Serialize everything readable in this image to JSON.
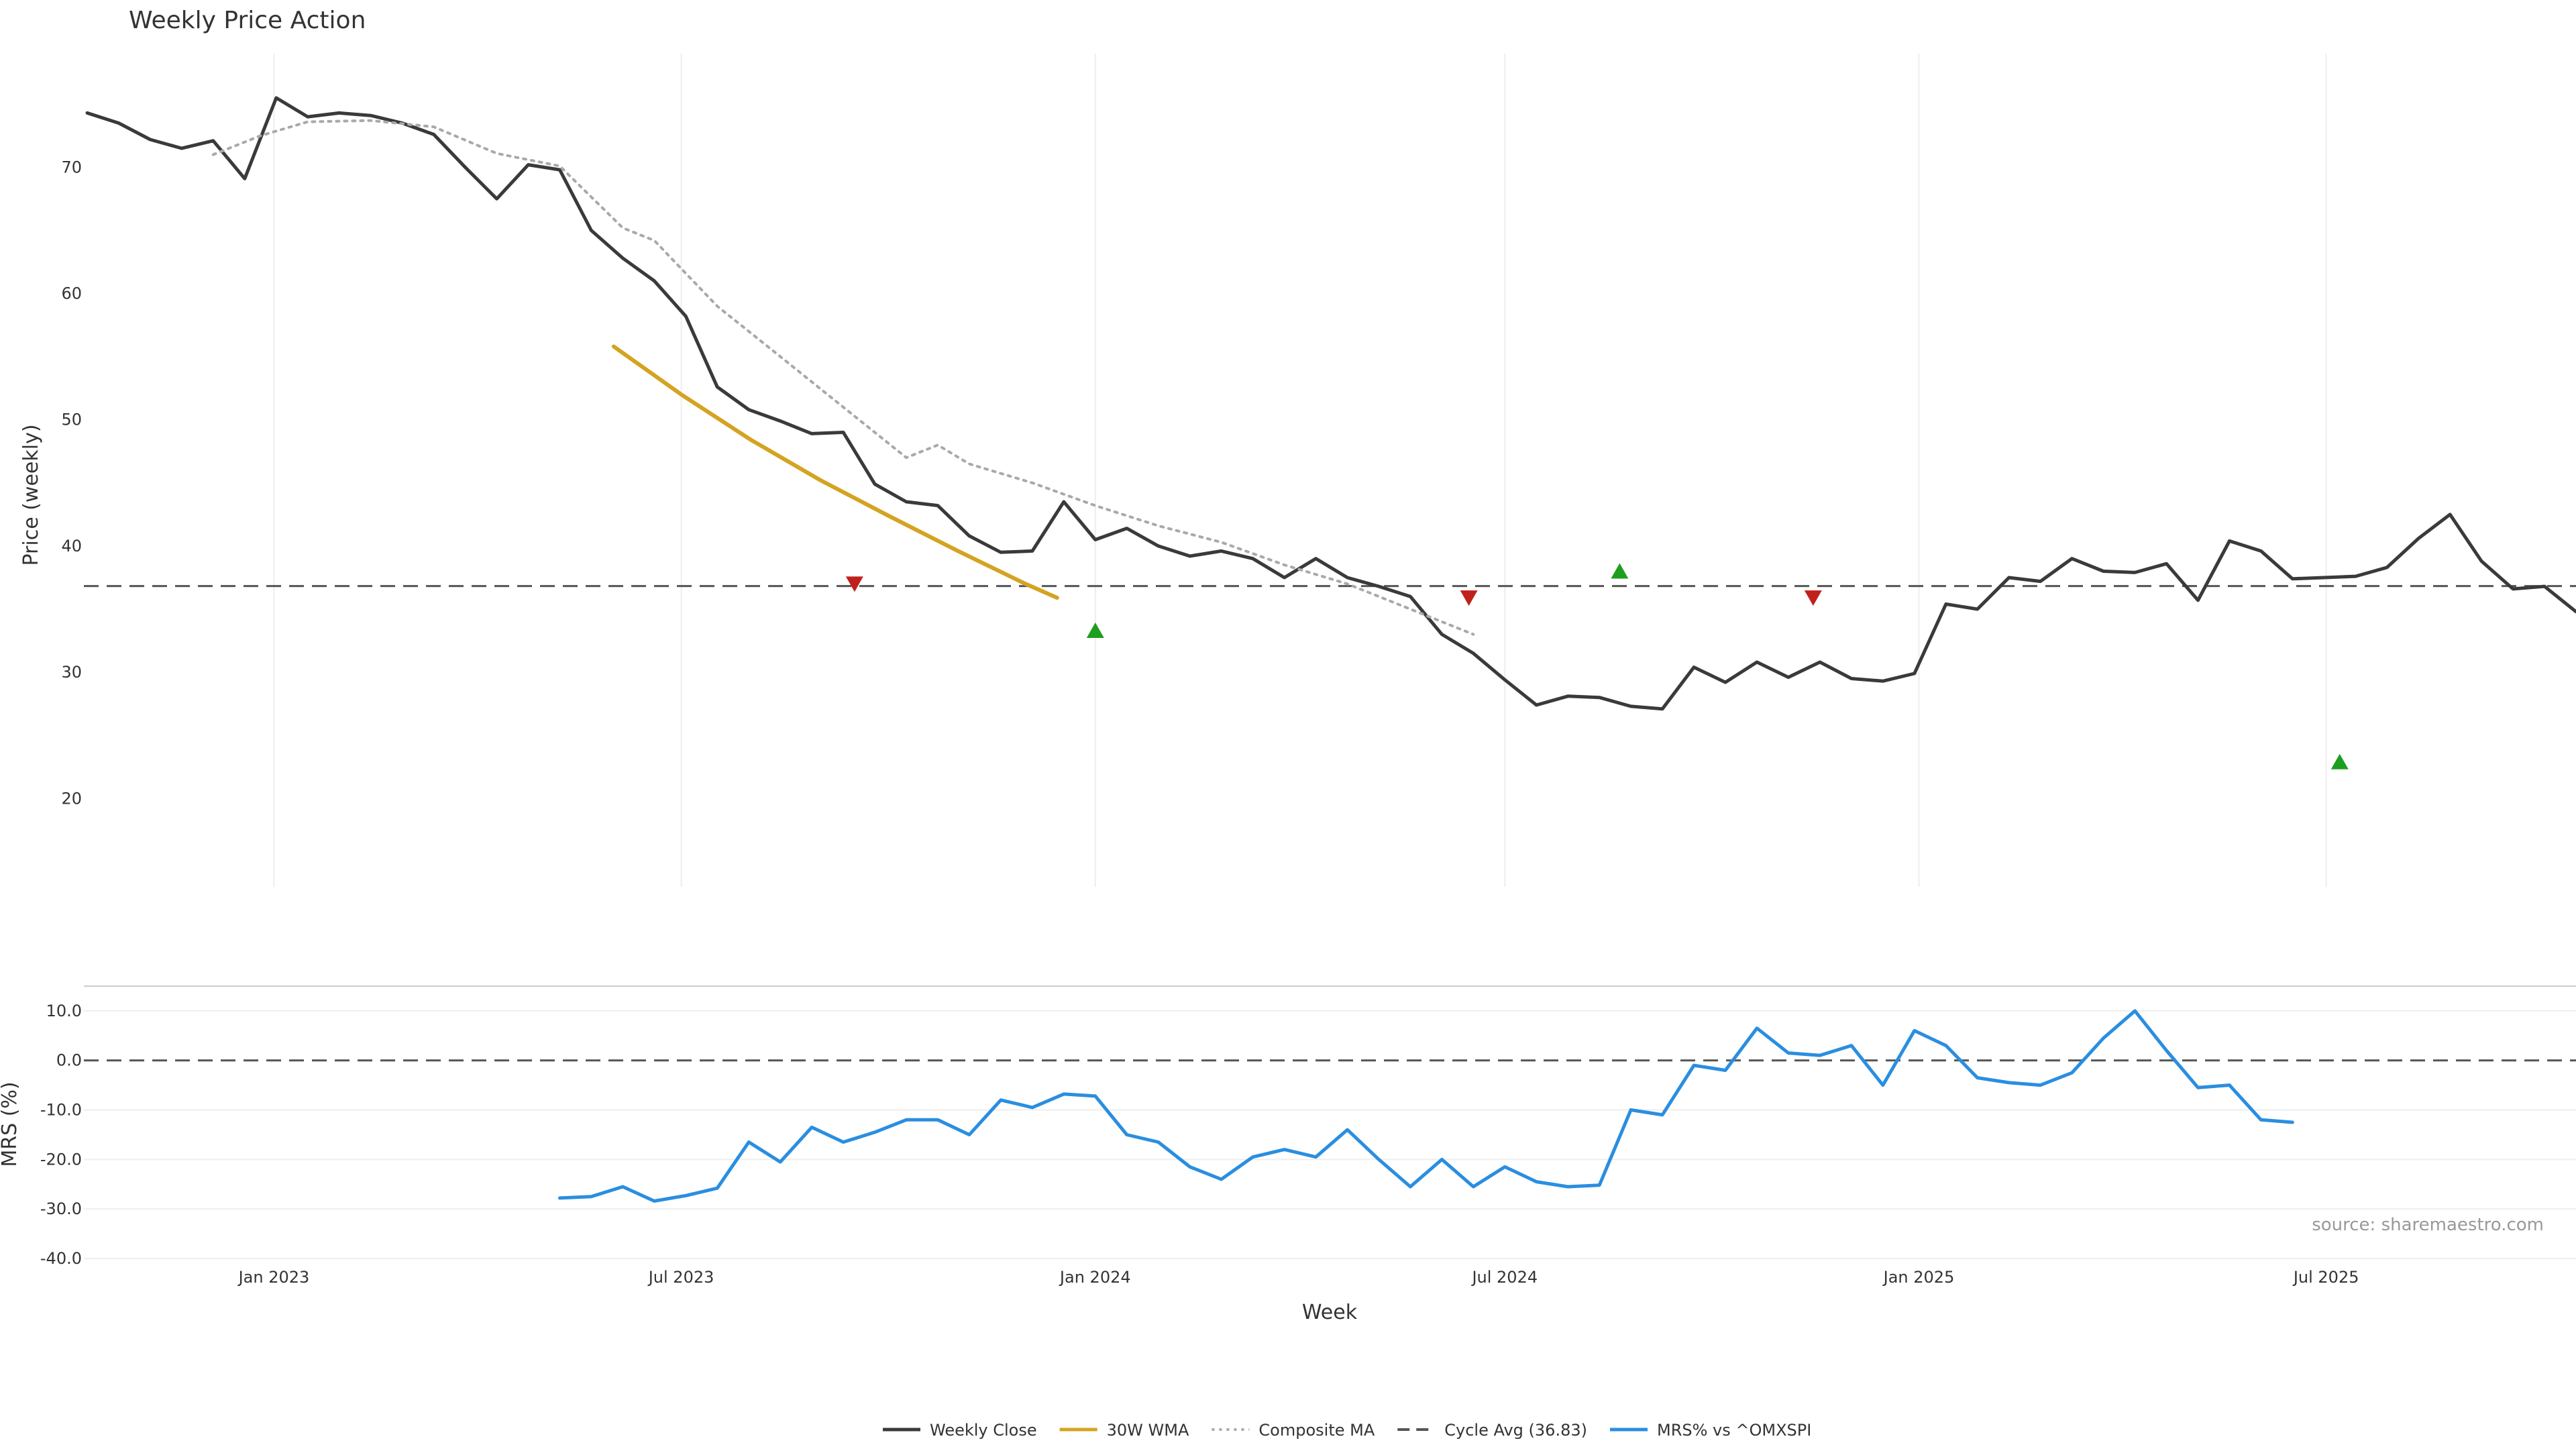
{
  "chart_data": {
    "type": "line",
    "title": "Weekly Price Action",
    "xlabel": "Week",
    "source": "source: sharemaestro.com",
    "colors": {
      "close": "#3a3a3a",
      "wma": "#d4a321",
      "composite": "#a9a9a9",
      "cycle": "#555555",
      "mrs": "#2a8ee0",
      "buy": "#1e9e1e",
      "sell": "#c0201c",
      "grid": "#eeeeee"
    },
    "x_ticks": [
      {
        "label": "Jan 2023",
        "date": "2023-01-01"
      },
      {
        "label": "Jul 2023",
        "date": "2023-07-01"
      },
      {
        "label": "Jan 2024",
        "date": "2024-01-01"
      },
      {
        "label": "Jul 2024",
        "date": "2024-07-01"
      },
      {
        "label": "Jan 2025",
        "date": "2025-01-01"
      },
      {
        "label": "Jul 2025",
        "date": "2025-07-01"
      }
    ],
    "x_range": [
      "2022-10-10",
      "2025-10-20"
    ],
    "price_panel": {
      "ylabel": "Price (weekly)",
      "ylim": [
        13,
        79
      ],
      "y_ticks": [
        20,
        30,
        40,
        50,
        60,
        70
      ],
      "cycle_avg": 36.83,
      "series": [
        {
          "name": "Weekly Close",
          "points": [
            [
              "2022-10-10",
              74.3
            ],
            [
              "2022-10-24",
              73.5
            ],
            [
              "2022-11-07",
              72.2
            ],
            [
              "2022-11-21",
              71.5
            ],
            [
              "2022-12-05",
              72.1
            ],
            [
              "2022-12-19",
              69.1
            ],
            [
              "2023-01-02",
              75.5
            ],
            [
              "2023-01-16",
              74.0
            ],
            [
              "2023-01-30",
              74.3
            ],
            [
              "2023-02-13",
              74.1
            ],
            [
              "2023-02-27",
              73.5
            ],
            [
              "2023-03-13",
              72.6
            ],
            [
              "2023-03-27",
              70.0
            ],
            [
              "2023-04-10",
              67.5
            ],
            [
              "2023-04-24",
              70.2
            ],
            [
              "2023-05-08",
              69.8
            ],
            [
              "2023-05-22",
              65.0
            ],
            [
              "2023-06-05",
              62.8
            ],
            [
              "2023-06-19",
              61.0
            ],
            [
              "2023-07-03",
              58.2
            ],
            [
              "2023-07-17",
              52.6
            ],
            [
              "2023-07-31",
              50.8
            ],
            [
              "2023-08-14",
              49.9
            ],
            [
              "2023-08-28",
              48.9
            ],
            [
              "2023-09-11",
              49.0
            ],
            [
              "2023-09-25",
              44.9
            ],
            [
              "2023-10-09",
              43.5
            ],
            [
              "2023-10-23",
              43.2
            ],
            [
              "2023-11-06",
              40.8
            ],
            [
              "2023-11-20",
              39.5
            ],
            [
              "2023-12-04",
              39.6
            ],
            [
              "2023-12-18",
              43.5
            ],
            [
              "2024-01-01",
              40.5
            ],
            [
              "2024-01-15",
              41.4
            ],
            [
              "2024-01-29",
              40.0
            ],
            [
              "2024-02-12",
              39.2
            ],
            [
              "2024-02-26",
              39.6
            ],
            [
              "2024-03-11",
              39.0
            ],
            [
              "2024-03-25",
              37.5
            ],
            [
              "2024-04-08",
              39.0
            ],
            [
              "2024-04-22",
              37.5
            ],
            [
              "2024-05-06",
              36.8
            ],
            [
              "2024-05-20",
              36.0
            ],
            [
              "2024-06-03",
              33.0
            ],
            [
              "2024-06-17",
              31.5
            ],
            [
              "2024-07-01",
              29.4
            ],
            [
              "2024-07-15",
              27.4
            ],
            [
              "2024-07-29",
              28.1
            ],
            [
              "2024-08-12",
              28.0
            ],
            [
              "2024-08-26",
              27.3
            ],
            [
              "2024-09-09",
              27.1
            ],
            [
              "2024-09-23",
              30.4
            ],
            [
              "2024-10-07",
              29.2
            ],
            [
              "2024-10-21",
              30.8
            ],
            [
              "2024-11-04",
              29.6
            ],
            [
              "2024-11-18",
              30.8
            ],
            [
              "2024-12-02",
              29.5
            ],
            [
              "2024-12-16",
              29.3
            ],
            [
              "2024-12-30",
              29.9
            ],
            [
              "2025-01-13",
              35.4
            ],
            [
              "2025-01-27",
              35.0
            ],
            [
              "2025-02-10",
              37.5
            ],
            [
              "2025-02-24",
              37.2
            ],
            [
              "2025-03-10",
              39.0
            ],
            [
              "2025-03-24",
              38.0
            ],
            [
              "2025-04-07",
              37.9
            ],
            [
              "2025-04-21",
              38.6
            ],
            [
              "2025-05-05",
              35.7
            ],
            [
              "2025-05-19",
              40.4
            ],
            [
              "2025-06-02",
              39.6
            ],
            [
              "2025-06-16",
              37.4
            ],
            [
              "2025-06-30",
              37.5
            ],
            [
              "2025-07-14",
              37.6
            ],
            [
              "2025-07-28",
              38.3
            ],
            [
              "2025-08-11",
              40.6
            ],
            [
              "2025-08-25",
              42.5
            ],
            [
              "2025-09-08",
              38.8
            ],
            [
              "2025-09-22",
              36.6
            ],
            [
              "2025-10-06",
              36.8
            ],
            [
              "2025-10-20",
              34.8
            ]
          ]
        },
        {
          "name": "30W WMA",
          "points": [
            [
              "2023-06-01",
              55.8
            ],
            [
              "2023-07-01",
              52.0
            ],
            [
              "2023-08-01",
              48.4
            ],
            [
              "2023-09-01",
              45.2
            ],
            [
              "2023-10-01",
              42.4
            ],
            [
              "2023-11-01",
              39.6
            ],
            [
              "2023-12-01",
              37.0
            ],
            [
              "2023-12-15",
              35.9
            ]
          ]
        },
        {
          "name": "Composite MA",
          "points": [
            [
              "2022-12-05",
              71.0
            ],
            [
              "2022-12-26",
              72.5
            ],
            [
              "2023-01-16",
              73.6
            ],
            [
              "2023-02-13",
              73.7
            ],
            [
              "2023-03-13",
              73.2
            ],
            [
              "2023-04-10",
              71.1
            ],
            [
              "2023-05-08",
              70.1
            ],
            [
              "2023-06-05",
              65.2
            ],
            [
              "2023-06-19",
              64.2
            ],
            [
              "2023-07-17",
              59.0
            ],
            [
              "2023-08-14",
              55.0
            ],
            [
              "2023-09-11",
              51.0
            ],
            [
              "2023-10-09",
              47.0
            ],
            [
              "2023-10-23",
              48.0
            ],
            [
              "2023-11-06",
              46.5
            ],
            [
              "2023-12-04",
              45.0
            ],
            [
              "2024-01-01",
              43.2
            ],
            [
              "2024-01-29",
              41.6
            ],
            [
              "2024-02-26",
              40.3
            ],
            [
              "2024-03-25",
              38.5
            ],
            [
              "2024-04-22",
              37.0
            ],
            [
              "2024-05-20",
              35.0
            ],
            [
              "2024-06-17",
              33.0
            ]
          ]
        }
      ],
      "signals": [
        {
          "type": "sell",
          "date": "2023-09-16",
          "value": 37.0
        },
        {
          "type": "buy",
          "date": "2024-01-01",
          "value": 33.3
        },
        {
          "type": "sell",
          "date": "2024-06-15",
          "value": 35.9
        },
        {
          "type": "buy",
          "date": "2024-08-21",
          "value": 38.0
        },
        {
          "type": "sell",
          "date": "2024-11-15",
          "value": 35.9
        },
        {
          "type": "buy",
          "date": "2025-07-07",
          "value": 22.9
        }
      ]
    },
    "mrs_panel": {
      "ylabel": "MRS (%)",
      "ylim": [
        -40,
        15
      ],
      "y_ticks": [
        {
          "value": 10,
          "label": "10.0"
        },
        {
          "value": 0,
          "label": "0.0"
        },
        {
          "value": -10,
          "label": "-10.0"
        },
        {
          "value": -20,
          "label": "-20.0"
        },
        {
          "value": -30,
          "label": "-30.0"
        },
        {
          "value": -40,
          "label": "-40.0"
        }
      ],
      "series": [
        {
          "name": "MRS% vs ^OMXSPI",
          "points": [
            [
              "2023-05-08",
              -27.8
            ],
            [
              "2023-05-22",
              -27.5
            ],
            [
              "2023-06-05",
              -25.5
            ],
            [
              "2023-06-19",
              -28.4
            ],
            [
              "2023-07-03",
              -27.3
            ],
            [
              "2023-07-17",
              -25.8
            ],
            [
              "2023-07-31",
              -16.5
            ],
            [
              "2023-08-14",
              -20.5
            ],
            [
              "2023-08-28",
              -13.5
            ],
            [
              "2023-09-11",
              -16.5
            ],
            [
              "2023-09-25",
              -14.5
            ],
            [
              "2023-10-09",
              -12.0
            ],
            [
              "2023-10-23",
              -12.0
            ],
            [
              "2023-11-06",
              -15.0
            ],
            [
              "2023-11-20",
              -8.0
            ],
            [
              "2023-12-04",
              -9.5
            ],
            [
              "2023-12-18",
              -6.8
            ],
            [
              "2024-01-01",
              -7.2
            ],
            [
              "2024-01-15",
              -15.0
            ],
            [
              "2024-01-29",
              -16.5
            ],
            [
              "2024-02-12",
              -21.5
            ],
            [
              "2024-02-26",
              -24.0
            ],
            [
              "2024-03-11",
              -19.5
            ],
            [
              "2024-03-25",
              -18.0
            ],
            [
              "2024-04-08",
              -19.5
            ],
            [
              "2024-04-22",
              -14.0
            ],
            [
              "2024-05-06",
              -20.0
            ],
            [
              "2024-05-20",
              -25.5
            ],
            [
              "2024-06-03",
              -20.0
            ],
            [
              "2024-06-17",
              -25.5
            ],
            [
              "2024-07-01",
              -21.5
            ],
            [
              "2024-07-15",
              -24.5
            ],
            [
              "2024-07-29",
              -25.5
            ],
            [
              "2024-08-12",
              -25.2
            ],
            [
              "2024-08-26",
              -10.0
            ],
            [
              "2024-09-09",
              -11.0
            ],
            [
              "2024-09-23",
              -1.0
            ],
            [
              "2024-10-07",
              -2.0
            ],
            [
              "2024-10-21",
              6.5
            ],
            [
              "2024-11-04",
              1.5
            ],
            [
              "2024-11-18",
              1.0
            ],
            [
              "2024-12-02",
              3.0
            ],
            [
              "2024-12-16",
              -5.0
            ],
            [
              "2024-12-30",
              6.0
            ],
            [
              "2025-01-13",
              3.0
            ],
            [
              "2025-01-27",
              -3.5
            ],
            [
              "2025-02-10",
              -4.5
            ],
            [
              "2025-02-24",
              -5.0
            ],
            [
              "2025-03-10",
              -2.5
            ],
            [
              "2025-03-24",
              4.5
            ],
            [
              "2025-04-07",
              10.0
            ],
            [
              "2025-04-21",
              2.0
            ],
            [
              "2025-05-05",
              -5.5
            ],
            [
              "2025-05-19",
              -5.0
            ],
            [
              "2025-06-02",
              -12.0
            ],
            [
              "2025-06-16",
              -12.5
            ]
          ]
        }
      ]
    },
    "legend": [
      {
        "label": "Weekly Close",
        "key": "close",
        "style": "solid"
      },
      {
        "label": "30W WMA",
        "key": "wma",
        "style": "solid"
      },
      {
        "label": "Composite MA",
        "key": "composite",
        "style": "dotted"
      },
      {
        "label": "Cycle Avg (36.83)",
        "key": "cycle",
        "style": "dashed"
      },
      {
        "label": "MRS% vs ^OMXSPI",
        "key": "mrs",
        "style": "solid"
      }
    ]
  }
}
